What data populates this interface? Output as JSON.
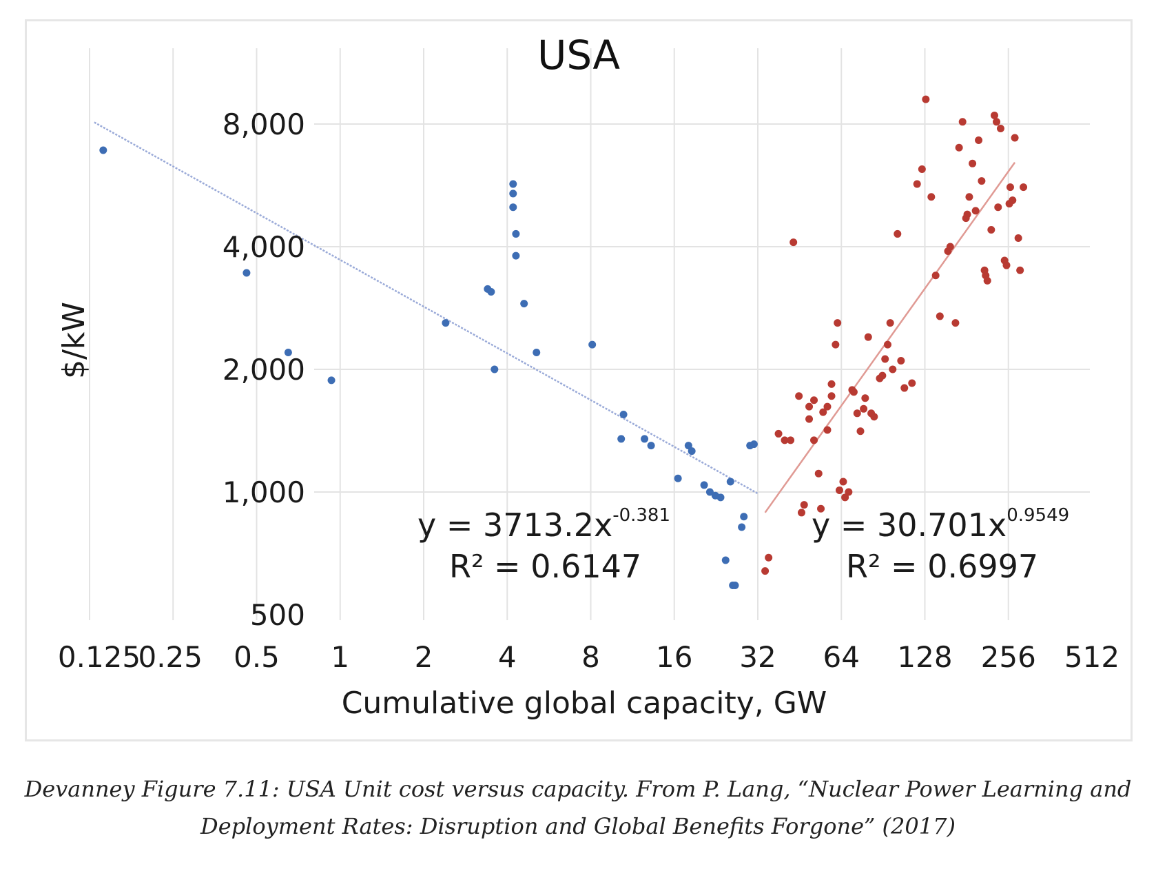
{
  "caption": {
    "line1": "Devanney Figure 7.11: USA Unit cost versus capacity. From P. Lang, “Nuclear Power Learning and",
    "line2": "Deployment Rates: Disruption and Global Benefits Forgone” (2017)"
  },
  "chart_data": {
    "type": "scatter",
    "title": "USA",
    "xlabel": "Cumulative global capacity, GW",
    "ylabel": "$/kW",
    "x_scale": "log2",
    "y_scale": "log2",
    "xlim": [
      0.125,
      512
    ],
    "ylim": [
      500,
      10000
    ],
    "x_ticks": [
      "0.125",
      "0.25",
      "0.5",
      "1",
      "2",
      "4",
      "8",
      "16",
      "32",
      "64",
      "128",
      "256",
      "512"
    ],
    "y_ticks": [
      "500",
      "1,000",
      "2,000",
      "4,000",
      "8,000"
    ],
    "grid": "horizontal and vertical",
    "colors": {
      "series_blue": "#3d6db4",
      "series_red": "#b83a32",
      "trend_blue": "#9aaad8",
      "trend_red": "#e09a94"
    },
    "series": [
      {
        "color": "#3d6db4",
        "points": [
          [
            0.14,
            6900
          ],
          [
            0.46,
            3450
          ],
          [
            0.65,
            2200
          ],
          [
            0.93,
            1880
          ],
          [
            2.4,
            2600
          ],
          [
            3.4,
            3150
          ],
          [
            3.5,
            3100
          ],
          [
            3.6,
            2000
          ],
          [
            4.2,
            5700
          ],
          [
            4.2,
            5400
          ],
          [
            4.2,
            5000
          ],
          [
            4.3,
            4300
          ],
          [
            4.3,
            3800
          ],
          [
            4.6,
            2900
          ],
          [
            5.1,
            2200
          ],
          [
            8.1,
            2300
          ],
          [
            10.5,
            1550
          ],
          [
            10.3,
            1350
          ],
          [
            12.5,
            1350
          ],
          [
            13.2,
            1300
          ],
          [
            16.5,
            1080
          ],
          [
            18.0,
            1300
          ],
          [
            18.5,
            1260
          ],
          [
            20.5,
            1040
          ],
          [
            21.5,
            1000
          ],
          [
            22.5,
            980
          ],
          [
            23.5,
            970
          ],
          [
            25.5,
            1060
          ],
          [
            24.5,
            680
          ],
          [
            26.0,
            590
          ],
          [
            26.5,
            590
          ],
          [
            28.0,
            820
          ],
          [
            28.5,
            870
          ],
          [
            30.0,
            1300
          ],
          [
            31.0,
            1310
          ]
        ],
        "trend": {
          "equation": "y = 3713.2x",
          "exponent": "-0.381",
          "r2": "R² = 0.6147",
          "a": 3713.2,
          "b": -0.381,
          "x_range": [
            0.13,
            32
          ]
        }
      },
      {
        "color": "#b83a32",
        "points": [
          [
            34,
            640
          ],
          [
            35,
            690
          ],
          [
            38,
            1390
          ],
          [
            40,
            1340
          ],
          [
            42,
            1340
          ],
          [
            43,
            4100
          ],
          [
            45,
            1720
          ],
          [
            46,
            890
          ],
          [
            47,
            930
          ],
          [
            49,
            1620
          ],
          [
            49,
            1510
          ],
          [
            51,
            1340
          ],
          [
            51,
            1680
          ],
          [
            53,
            1110
          ],
          [
            54,
            910
          ],
          [
            55,
            1570
          ],
          [
            57,
            1620
          ],
          [
            57,
            1420
          ],
          [
            59,
            1720
          ],
          [
            59,
            1840
          ],
          [
            61,
            2300
          ],
          [
            62,
            2600
          ],
          [
            63,
            1010
          ],
          [
            65,
            1060
          ],
          [
            66,
            970
          ],
          [
            68,
            1000
          ],
          [
            70,
            1780
          ],
          [
            71,
            1760
          ],
          [
            73,
            1560
          ],
          [
            75,
            1410
          ],
          [
            77,
            1600
          ],
          [
            78,
            1700
          ],
          [
            80,
            2400
          ],
          [
            82,
            1560
          ],
          [
            84,
            1530
          ],
          [
            88,
            1900
          ],
          [
            90,
            1930
          ],
          [
            92,
            2120
          ],
          [
            94,
            2300
          ],
          [
            96,
            2600
          ],
          [
            98,
            2000
          ],
          [
            102,
            4300
          ],
          [
            105,
            2100
          ],
          [
            108,
            1800
          ],
          [
            115,
            1850
          ],
          [
            120,
            5700
          ],
          [
            125,
            6200
          ],
          [
            129,
            9200
          ],
          [
            135,
            5300
          ],
          [
            140,
            3400
          ],
          [
            145,
            2700
          ],
          [
            155,
            3900
          ],
          [
            158,
            4000
          ],
          [
            165,
            2600
          ],
          [
            170,
            7000
          ],
          [
            175,
            8100
          ],
          [
            180,
            4700
          ],
          [
            182,
            4800
          ],
          [
            185,
            5300
          ],
          [
            190,
            6400
          ],
          [
            195,
            4900
          ],
          [
            200,
            7300
          ],
          [
            205,
            5800
          ],
          [
            210,
            3500
          ],
          [
            212,
            3400
          ],
          [
            215,
            3300
          ],
          [
            222,
            4400
          ],
          [
            228,
            8400
          ],
          [
            232,
            8100
          ],
          [
            235,
            5000
          ],
          [
            240,
            7800
          ],
          [
            248,
            3700
          ],
          [
            252,
            3600
          ],
          [
            258,
            5100
          ],
          [
            260,
            5600
          ],
          [
            265,
            5200
          ],
          [
            270,
            7400
          ],
          [
            278,
            4200
          ],
          [
            282,
            3500
          ],
          [
            290,
            5600
          ]
        ],
        "trend": {
          "equation": "y = 30.701x",
          "exponent": "0.9549",
          "r2": "R² = 0.6997",
          "a": 30.701,
          "b": 0.9549,
          "x_range": [
            34,
            270
          ]
        }
      }
    ]
  }
}
